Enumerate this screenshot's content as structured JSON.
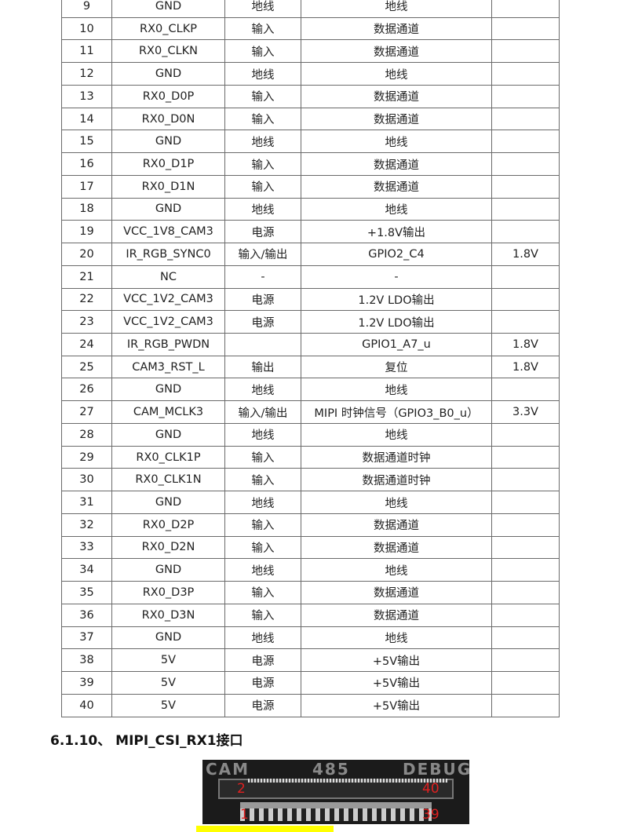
{
  "table": {
    "rows": [
      [
        "9",
        "GND",
        "地线",
        "地线",
        ""
      ],
      [
        "10",
        "RX0_CLKP",
        "输入",
        "数据通道",
        ""
      ],
      [
        "11",
        "RX0_CLKN",
        "输入",
        "数据通道",
        ""
      ],
      [
        "12",
        "GND",
        "地线",
        "地线",
        ""
      ],
      [
        "13",
        "RX0_D0P",
        "输入",
        "数据通道",
        ""
      ],
      [
        "14",
        "RX0_D0N",
        "输入",
        "数据通道",
        ""
      ],
      [
        "15",
        "GND",
        "地线",
        "地线",
        ""
      ],
      [
        "16",
        "RX0_D1P",
        "输入",
        "数据通道",
        ""
      ],
      [
        "17",
        "RX0_D1N",
        "输入",
        "数据通道",
        ""
      ],
      [
        "18",
        "GND",
        "地线",
        "地线",
        ""
      ],
      [
        "19",
        "VCC_1V8_CAM3",
        "电源",
        "+1.8V输出",
        ""
      ],
      [
        "20",
        "IR_RGB_SYNC0",
        "输入/输出",
        "GPIO2_C4",
        "1.8V"
      ],
      [
        "21",
        "NC",
        "-",
        "-",
        ""
      ],
      [
        "22",
        "VCC_1V2_CAM3",
        "电源",
        "1.2V LDO输出",
        ""
      ],
      [
        "23",
        "VCC_1V2_CAM3",
        "电源",
        "1.2V LDO输出",
        ""
      ],
      [
        "24",
        "IR_RGB_PWDN",
        "",
        "GPIO1_A7_u",
        "1.8V"
      ],
      [
        "25",
        "CAM3_RST_L",
        "输出",
        "复位",
        "1.8V"
      ],
      [
        "26",
        "GND",
        "地线",
        "地线",
        ""
      ],
      [
        "27",
        "CAM_MCLK3",
        "输入/输出",
        "MIPI 时钟信号（GPIO3_B0_u）",
        "3.3V"
      ],
      [
        "28",
        "GND",
        "地线",
        "地线",
        ""
      ],
      [
        "29",
        "RX0_CLK1P",
        "输入",
        "数据通道时钟",
        ""
      ],
      [
        "30",
        "RX0_CLK1N",
        "输入",
        "数据通道时钟",
        ""
      ],
      [
        "31",
        "GND",
        "地线",
        "地线",
        ""
      ],
      [
        "32",
        "RX0_D2P",
        "输入",
        "数据通道",
        ""
      ],
      [
        "33",
        "RX0_D2N",
        "输入",
        "数据通道",
        ""
      ],
      [
        "34",
        "GND",
        "地线",
        "地线",
        ""
      ],
      [
        "35",
        "RX0_D3P",
        "输入",
        "数据通道",
        ""
      ],
      [
        "36",
        "RX0_D3N",
        "输入",
        "数据通道",
        ""
      ],
      [
        "37",
        "GND",
        "地线",
        "地线",
        ""
      ],
      [
        "38",
        "5V",
        "电源",
        "+5V输出",
        ""
      ],
      [
        "39",
        "5V",
        "电源",
        "+5V输出",
        ""
      ],
      [
        "40",
        "5V",
        "电源",
        "+5V输出",
        ""
      ]
    ]
  },
  "heading": "6.1.10、 MIPI_CSI_RX1接口",
  "photo": {
    "silkscreen": [
      "CAM",
      "485",
      "DEBUG"
    ],
    "pin_labels": {
      "top_left": "2",
      "top_right": "40",
      "bottom_left": "1",
      "bottom_right": "39"
    },
    "label_color": "#e02020"
  },
  "highlight_color": "#ffff00"
}
